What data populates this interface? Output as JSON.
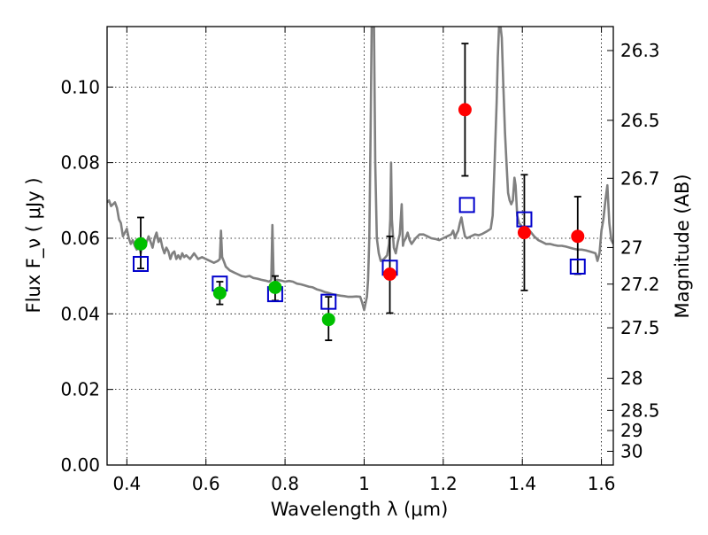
{
  "chart_data": {
    "type": "scatter",
    "xlabel": "Wavelength  λ (μm)",
    "ylabel": "Flux  F_ν  ( μJy )",
    "ylabel_right": "Magnitude (AB)",
    "xlim": [
      0.35,
      1.63
    ],
    "ylim": [
      0.0,
      0.116
    ],
    "grid": true,
    "x_ticks": [
      0.4,
      0.6,
      0.8,
      1.0,
      1.2,
      1.4,
      1.6
    ],
    "x_tick_labels": [
      "0.4",
      "0.6",
      "0.8",
      "1",
      "1.2",
      "1.4",
      "1.6"
    ],
    "y_ticks": [
      0.0,
      0.02,
      0.04,
      0.06,
      0.08,
      0.1
    ],
    "y_tick_labels": [
      "0.00",
      "0.02",
      "0.04",
      "0.06",
      "0.08",
      "0.10"
    ],
    "right_ticks": [
      {
        "label": "26.3",
        "mag": 26.3
      },
      {
        "label": "26.5",
        "mag": 26.5
      },
      {
        "label": "26.7",
        "mag": 26.7
      },
      {
        "label": "27",
        "mag": 27.0
      },
      {
        "label": "27.2",
        "mag": 27.2
      },
      {
        "label": "27.5",
        "mag": 27.5
      },
      {
        "label": "28",
        "mag": 28.0
      },
      {
        "label": "28.5",
        "mag": 28.5
      },
      {
        "label": "29",
        "mag": 29.0
      },
      {
        "label": "30",
        "mag": 30.0
      }
    ],
    "colors": {
      "sed": "#808080",
      "green_points": "#00c000",
      "red_points": "#ff0000",
      "model_squares": "#0000cc",
      "error_bars": "#000000"
    },
    "series": [
      {
        "marker": "circle-green",
        "points": [
          {
            "x": 0.435,
            "y": 0.0585,
            "err_low": 0.052,
            "err_high": 0.0655
          },
          {
            "x": 0.635,
            "y": 0.0455,
            "err_low": 0.0425,
            "err_high": 0.0485
          },
          {
            "x": 0.775,
            "y": 0.047,
            "err_low": 0.0435,
            "err_high": 0.05
          },
          {
            "x": 0.91,
            "y": 0.0385,
            "err_low": 0.033,
            "err_high": 0.0445
          }
        ]
      },
      {
        "marker": "circle-red",
        "points": [
          {
            "x": 1.065,
            "y": 0.0505,
            "err_low": 0.0402,
            "err_high": 0.0605
          },
          {
            "x": 1.255,
            "y": 0.094,
            "err_low": 0.0765,
            "err_high": 0.1115
          },
          {
            "x": 1.405,
            "y": 0.0615,
            "err_low": 0.0462,
            "err_high": 0.0768
          },
          {
            "x": 1.54,
            "y": 0.0605,
            "err_low": 0.0505,
            "err_high": 0.071
          }
        ]
      },
      {
        "marker": "square-open-blue",
        "points": [
          {
            "x": 0.435,
            "y": 0.0532
          },
          {
            "x": 0.635,
            "y": 0.048
          },
          {
            "x": 0.775,
            "y": 0.0452
          },
          {
            "x": 0.91,
            "y": 0.0432
          },
          {
            "x": 1.065,
            "y": 0.0522
          },
          {
            "x": 1.26,
            "y": 0.0688
          },
          {
            "x": 1.405,
            "y": 0.065
          },
          {
            "x": 1.54,
            "y": 0.0525
          }
        ]
      },
      {
        "marker": "line-gray",
        "points": [
          [
            0.35,
            0.0695
          ],
          [
            0.355,
            0.07
          ],
          [
            0.36,
            0.0685
          ],
          [
            0.365,
            0.069
          ],
          [
            0.37,
            0.0695
          ],
          [
            0.375,
            0.068
          ],
          [
            0.38,
            0.065
          ],
          [
            0.385,
            0.064
          ],
          [
            0.39,
            0.0605
          ],
          [
            0.395,
            0.0615
          ],
          [
            0.4,
            0.0625
          ],
          [
            0.405,
            0.06
          ],
          [
            0.41,
            0.0585
          ],
          [
            0.415,
            0.0595
          ],
          [
            0.42,
            0.058
          ],
          [
            0.425,
            0.057
          ],
          [
            0.43,
            0.059
          ],
          [
            0.435,
            0.056
          ],
          [
            0.44,
            0.06
          ],
          [
            0.445,
            0.0575
          ],
          [
            0.45,
            0.059
          ],
          [
            0.455,
            0.0605
          ],
          [
            0.46,
            0.059
          ],
          [
            0.465,
            0.0575
          ],
          [
            0.47,
            0.06
          ],
          [
            0.475,
            0.0615
          ],
          [
            0.48,
            0.059
          ],
          [
            0.485,
            0.06
          ],
          [
            0.49,
            0.0575
          ],
          [
            0.495,
            0.056
          ],
          [
            0.5,
            0.0575
          ],
          [
            0.505,
            0.0565
          ],
          [
            0.51,
            0.0545
          ],
          [
            0.515,
            0.056
          ],
          [
            0.52,
            0.0565
          ],
          [
            0.525,
            0.0545
          ],
          [
            0.53,
            0.0555
          ],
          [
            0.535,
            0.0545
          ],
          [
            0.54,
            0.056
          ],
          [
            0.545,
            0.055
          ],
          [
            0.55,
            0.0555
          ],
          [
            0.555,
            0.055
          ],
          [
            0.56,
            0.0545
          ],
          [
            0.57,
            0.056
          ],
          [
            0.58,
            0.0545
          ],
          [
            0.59,
            0.055
          ],
          [
            0.6,
            0.0545
          ],
          [
            0.61,
            0.054
          ],
          [
            0.62,
            0.0535
          ],
          [
            0.63,
            0.054
          ],
          [
            0.635,
            0.0545
          ],
          [
            0.638,
            0.062
          ],
          [
            0.641,
            0.055
          ],
          [
            0.645,
            0.054
          ],
          [
            0.65,
            0.0525
          ],
          [
            0.66,
            0.0515
          ],
          [
            0.67,
            0.051
          ],
          [
            0.68,
            0.0505
          ],
          [
            0.69,
            0.05
          ],
          [
            0.7,
            0.0498
          ],
          [
            0.71,
            0.05
          ],
          [
            0.72,
            0.0495
          ],
          [
            0.73,
            0.0493
          ],
          [
            0.74,
            0.049
          ],
          [
            0.75,
            0.0488
          ],
          [
            0.76,
            0.0485
          ],
          [
            0.765,
            0.049
          ],
          [
            0.768,
            0.0635
          ],
          [
            0.771,
            0.05
          ],
          [
            0.775,
            0.0485
          ],
          [
            0.78,
            0.049
          ],
          [
            0.79,
            0.0488
          ],
          [
            0.8,
            0.0485
          ],
          [
            0.81,
            0.0487
          ],
          [
            0.82,
            0.0485
          ],
          [
            0.83,
            0.048
          ],
          [
            0.84,
            0.0478
          ],
          [
            0.85,
            0.0475
          ],
          [
            0.86,
            0.0472
          ],
          [
            0.87,
            0.047
          ],
          [
            0.88,
            0.0465
          ],
          [
            0.89,
            0.0462
          ],
          [
            0.9,
            0.0458
          ],
          [
            0.91,
            0.0455
          ],
          [
            0.92,
            0.0452
          ],
          [
            0.93,
            0.045
          ],
          [
            0.94,
            0.0448
          ],
          [
            0.95,
            0.0447
          ],
          [
            0.96,
            0.0445
          ],
          [
            0.97,
            0.0445
          ],
          [
            0.98,
            0.0446
          ],
          [
            0.99,
            0.0445
          ],
          [
            0.995,
            0.043
          ],
          [
            1.0,
            0.041
          ],
          [
            1.003,
            0.0425
          ],
          [
            1.007,
            0.0445
          ],
          [
            1.01,
            0.049
          ],
          [
            1.013,
            0.06
          ],
          [
            1.016,
            0.085
          ],
          [
            1.019,
            0.116
          ],
          [
            1.025,
            0.116
          ],
          [
            1.028,
            0.08
          ],
          [
            1.032,
            0.06
          ],
          [
            1.037,
            0.056
          ],
          [
            1.042,
            0.054
          ],
          [
            1.05,
            0.0545
          ],
          [
            1.058,
            0.0555
          ],
          [
            1.063,
            0.0585
          ],
          [
            1.066,
            0.065
          ],
          [
            1.068,
            0.08
          ],
          [
            1.07,
            0.065
          ],
          [
            1.075,
            0.0575
          ],
          [
            1.08,
            0.056
          ],
          [
            1.085,
            0.059
          ],
          [
            1.09,
            0.061
          ],
          [
            1.095,
            0.069
          ],
          [
            1.098,
            0.058
          ],
          [
            1.1,
            0.059
          ],
          [
            1.105,
            0.06
          ],
          [
            1.11,
            0.0615
          ],
          [
            1.115,
            0.0595
          ],
          [
            1.12,
            0.0585
          ],
          [
            1.13,
            0.06
          ],
          [
            1.14,
            0.061
          ],
          [
            1.15,
            0.061
          ],
          [
            1.16,
            0.0605
          ],
          [
            1.17,
            0.06
          ],
          [
            1.18,
            0.0598
          ],
          [
            1.19,
            0.0595
          ],
          [
            1.2,
            0.06
          ],
          [
            1.21,
            0.0605
          ],
          [
            1.22,
            0.061
          ],
          [
            1.225,
            0.062
          ],
          [
            1.23,
            0.06
          ],
          [
            1.233,
            0.061
          ],
          [
            1.238,
            0.062
          ],
          [
            1.242,
            0.064
          ],
          [
            1.246,
            0.0655
          ],
          [
            1.25,
            0.063
          ],
          [
            1.255,
            0.0605
          ],
          [
            1.26,
            0.06
          ],
          [
            1.27,
            0.0605
          ],
          [
            1.28,
            0.061
          ],
          [
            1.29,
            0.0608
          ],
          [
            1.3,
            0.0612
          ],
          [
            1.31,
            0.0618
          ],
          [
            1.32,
            0.0625
          ],
          [
            1.325,
            0.066
          ],
          [
            1.33,
            0.08
          ],
          [
            1.335,
            0.096
          ],
          [
            1.338,
            0.108
          ],
          [
            1.341,
            0.116
          ],
          [
            1.345,
            0.116
          ],
          [
            1.348,
            0.113
          ],
          [
            1.352,
            0.1
          ],
          [
            1.356,
            0.088
          ],
          [
            1.36,
            0.08
          ],
          [
            1.364,
            0.072
          ],
          [
            1.368,
            0.07
          ],
          [
            1.372,
            0.069
          ],
          [
            1.376,
            0.07
          ],
          [
            1.38,
            0.076
          ],
          [
            1.383,
            0.074
          ],
          [
            1.387,
            0.066
          ],
          [
            1.392,
            0.064
          ],
          [
            1.4,
            0.063
          ],
          [
            1.41,
            0.0625
          ],
          [
            1.42,
            0.0618
          ],
          [
            1.43,
            0.0605
          ],
          [
            1.44,
            0.0595
          ],
          [
            1.45,
            0.059
          ],
          [
            1.46,
            0.0585
          ],
          [
            1.47,
            0.0585
          ],
          [
            1.48,
            0.0582
          ],
          [
            1.49,
            0.058
          ],
          [
            1.5,
            0.058
          ],
          [
            1.51,
            0.0578
          ],
          [
            1.52,
            0.0575
          ],
          [
            1.53,
            0.0572
          ],
          [
            1.54,
            0.057
          ],
          [
            1.55,
            0.057
          ],
          [
            1.56,
            0.0568
          ],
          [
            1.57,
            0.0565
          ],
          [
            1.58,
            0.0562
          ],
          [
            1.585,
            0.056
          ],
          [
            1.59,
            0.054
          ],
          [
            1.595,
            0.056
          ],
          [
            1.6,
            0.062
          ],
          [
            1.605,
            0.065
          ],
          [
            1.61,
            0.07
          ],
          [
            1.615,
            0.074
          ],
          [
            1.62,
            0.064
          ],
          [
            1.625,
            0.0595
          ],
          [
            1.63,
            0.0585
          ]
        ]
      }
    ]
  }
}
